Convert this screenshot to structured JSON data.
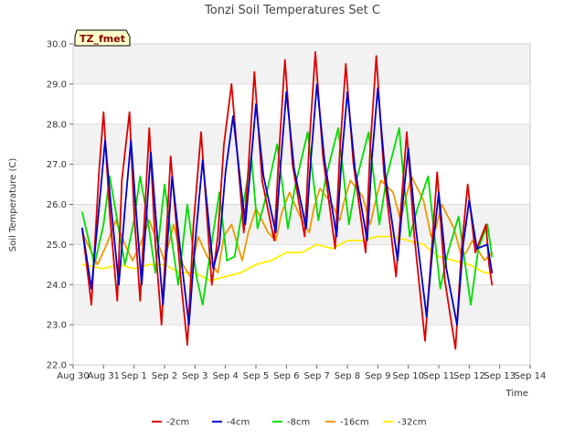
{
  "chart_data": {
    "type": "line",
    "title": "Tonzi Soil Temperatures Set C",
    "xlabel": "Time",
    "ylabel": "Soil Temperature (C)",
    "ylim": [
      22.0,
      30.0
    ],
    "xlim": [
      0,
      15
    ],
    "yticks": [
      22.0,
      23.0,
      24.0,
      25.0,
      26.0,
      27.0,
      28.0,
      29.0,
      30.0
    ],
    "ytick_labels": [
      "22.0",
      "23.0",
      "24.0",
      "25.0",
      "26.0",
      "27.0",
      "28.0",
      "29.0",
      "30.0"
    ],
    "xticks": [
      0,
      1,
      2,
      3,
      4,
      5,
      6,
      7,
      8,
      9,
      10,
      11,
      12,
      13,
      14,
      15
    ],
    "xtick_labels": [
      "Aug 30",
      "Aug 31",
      "Sep 1",
      "Sep 2",
      "Sep 3",
      "Sep 4",
      "Sep 5",
      "Sep 6",
      "Sep 7",
      "Sep 8",
      "Sep 9",
      "Sep 10",
      "Sep 11",
      "Sep 12",
      "Sep 13",
      "Sep 14"
    ],
    "badge": "TZ_fmet",
    "grid": "horizontal bands",
    "legend_position": "bottom-center",
    "series": [
      {
        "name": "-2cm",
        "color": "#dd0000",
        "x": [
          0.3,
          0.6,
          0.85,
          1.0,
          1.2,
          1.45,
          1.6,
          1.85,
          2.0,
          2.2,
          2.5,
          2.7,
          2.9,
          3.2,
          3.55,
          3.75,
          3.95,
          4.2,
          4.55,
          4.75,
          4.95,
          5.2,
          5.6,
          5.75,
          5.95,
          6.2,
          6.6,
          6.75,
          6.95,
          7.2,
          7.6,
          7.75,
          7.95,
          8.2,
          8.6,
          8.75,
          8.95,
          9.2,
          9.6,
          9.75,
          9.95,
          10.2,
          10.6,
          10.75,
          10.95,
          11.2,
          11.55,
          11.75,
          11.95,
          12.2,
          12.55,
          12.75,
          12.95,
          13.2,
          13.55,
          13.65,
          13.75
        ],
        "values": [
          25.4,
          23.5,
          26.8,
          28.3,
          25.8,
          23.6,
          26.6,
          28.3,
          25.8,
          23.6,
          27.9,
          25.0,
          23.0,
          27.2,
          24.0,
          22.5,
          25.5,
          27.8,
          24.0,
          25.2,
          27.5,
          29.0,
          25.3,
          26.9,
          29.3,
          26.6,
          25.1,
          27.2,
          29.6,
          27.0,
          25.2,
          27.5,
          29.8,
          27.2,
          24.9,
          27.3,
          29.5,
          27.0,
          24.8,
          27.4,
          29.7,
          26.8,
          24.2,
          25.8,
          27.8,
          25.2,
          22.6,
          24.7,
          26.8,
          24.1,
          22.4,
          24.9,
          26.5,
          24.8,
          25.5,
          24.5,
          24.0
        ]
      },
      {
        "name": "-4cm",
        "color": "#0000cc",
        "x": [
          0.3,
          0.6,
          0.85,
          1.05,
          1.25,
          1.5,
          1.7,
          1.9,
          2.05,
          2.25,
          2.55,
          2.75,
          2.95,
          3.25,
          3.6,
          3.8,
          4.0,
          4.25,
          4.6,
          4.8,
          5.0,
          5.25,
          5.65,
          5.8,
          6.0,
          6.25,
          6.65,
          6.8,
          7.0,
          7.25,
          7.65,
          7.8,
          8.0,
          8.25,
          8.65,
          8.8,
          9.0,
          9.25,
          9.65,
          9.8,
          10.0,
          10.25,
          10.65,
          10.8,
          11.0,
          11.25,
          11.6,
          11.8,
          12.0,
          12.25,
          12.6,
          12.8,
          13.0,
          13.25,
          13.6,
          13.75
        ],
        "values": [
          25.4,
          23.9,
          25.9,
          27.6,
          25.9,
          24.0,
          25.9,
          27.6,
          26.0,
          24.0,
          27.3,
          25.3,
          23.5,
          26.7,
          24.3,
          23.0,
          25.0,
          27.1,
          24.4,
          25.0,
          26.8,
          28.2,
          25.5,
          26.7,
          28.5,
          26.7,
          25.3,
          26.9,
          28.8,
          26.9,
          25.4,
          27.1,
          29.0,
          27.1,
          25.2,
          27.0,
          28.8,
          26.9,
          25.1,
          27.1,
          28.9,
          26.7,
          24.6,
          25.9,
          27.4,
          25.4,
          23.2,
          24.9,
          26.3,
          24.4,
          23.0,
          25.0,
          26.1,
          24.9,
          25.0,
          24.3
        ]
      },
      {
        "name": "-8cm",
        "color": "#00dd00",
        "x": [
          0.3,
          0.7,
          1.0,
          1.2,
          1.45,
          1.7,
          2.0,
          2.2,
          2.45,
          2.7,
          3.0,
          3.2,
          3.45,
          3.75,
          4.05,
          4.25,
          4.5,
          4.8,
          5.05,
          5.3,
          5.65,
          5.85,
          6.05,
          6.3,
          6.7,
          6.85,
          7.05,
          7.3,
          7.7,
          7.85,
          8.05,
          8.3,
          8.7,
          8.85,
          9.05,
          9.3,
          9.7,
          9.85,
          10.05,
          10.3,
          10.7,
          10.85,
          11.05,
          11.3,
          11.65,
          11.85,
          12.05,
          12.3,
          12.65,
          12.85,
          13.05,
          13.3,
          13.6,
          13.75
        ],
        "values": [
          25.8,
          24.5,
          25.5,
          26.7,
          25.6,
          24.5,
          25.6,
          26.7,
          25.6,
          24.3,
          26.5,
          25.3,
          24.0,
          26.0,
          24.2,
          23.5,
          24.8,
          26.3,
          24.6,
          24.7,
          26.3,
          27.2,
          25.4,
          26.1,
          27.5,
          26.6,
          25.4,
          26.5,
          27.8,
          26.8,
          25.6,
          26.7,
          27.9,
          26.9,
          25.5,
          26.6,
          27.8,
          26.8,
          25.5,
          26.7,
          27.9,
          26.6,
          25.2,
          25.9,
          26.7,
          25.3,
          23.9,
          24.8,
          25.7,
          24.6,
          23.5,
          24.9,
          25.5,
          24.7
        ]
      },
      {
        "name": "-16cm",
        "color": "#ee9900",
        "x": [
          0.3,
          0.8,
          1.1,
          1.4,
          1.7,
          1.95,
          2.2,
          2.5,
          2.75,
          3.0,
          3.3,
          3.6,
          3.85,
          4.1,
          4.4,
          4.75,
          4.95,
          5.2,
          5.55,
          5.75,
          6.0,
          6.4,
          6.65,
          6.85,
          7.1,
          7.45,
          7.75,
          7.9,
          8.1,
          8.5,
          8.75,
          8.9,
          9.1,
          9.5,
          9.75,
          9.9,
          10.1,
          10.5,
          10.75,
          10.9,
          11.1,
          11.5,
          11.75,
          11.9,
          12.1,
          12.5,
          12.75,
          12.9,
          13.1,
          13.5,
          13.75
        ],
        "values": [
          25.3,
          24.5,
          25.0,
          25.6,
          25.0,
          24.6,
          25.0,
          25.6,
          25.1,
          24.6,
          25.5,
          24.5,
          24.2,
          25.2,
          24.7,
          24.3,
          25.2,
          25.5,
          24.6,
          25.3,
          25.9,
          25.3,
          25.1,
          25.8,
          26.3,
          25.7,
          25.3,
          25.9,
          26.4,
          26.0,
          25.6,
          26.1,
          26.6,
          26.2,
          25.5,
          26.0,
          26.6,
          26.3,
          25.6,
          26.1,
          26.7,
          26.1,
          25.2,
          25.4,
          26.0,
          25.4,
          24.7,
          24.8,
          25.1,
          24.6,
          24.8
        ]
      },
      {
        "name": "-32cm",
        "color": "#ffee00",
        "x": [
          0.3,
          1.0,
          1.5,
          2.0,
          2.5,
          3.0,
          3.5,
          4.0,
          4.5,
          5.0,
          5.5,
          6.0,
          6.5,
          7.0,
          7.5,
          8.0,
          8.5,
          9.0,
          9.5,
          10.0,
          10.5,
          11.0,
          11.5,
          12.0,
          12.5,
          13.0,
          13.5,
          13.75
        ],
        "values": [
          24.5,
          24.4,
          24.5,
          24.4,
          24.5,
          24.5,
          24.3,
          24.3,
          24.1,
          24.2,
          24.3,
          24.5,
          24.6,
          24.8,
          24.8,
          25.0,
          24.9,
          25.1,
          25.1,
          25.2,
          25.2,
          25.1,
          25.0,
          24.7,
          24.6,
          24.5,
          24.3,
          24.3
        ]
      }
    ]
  }
}
